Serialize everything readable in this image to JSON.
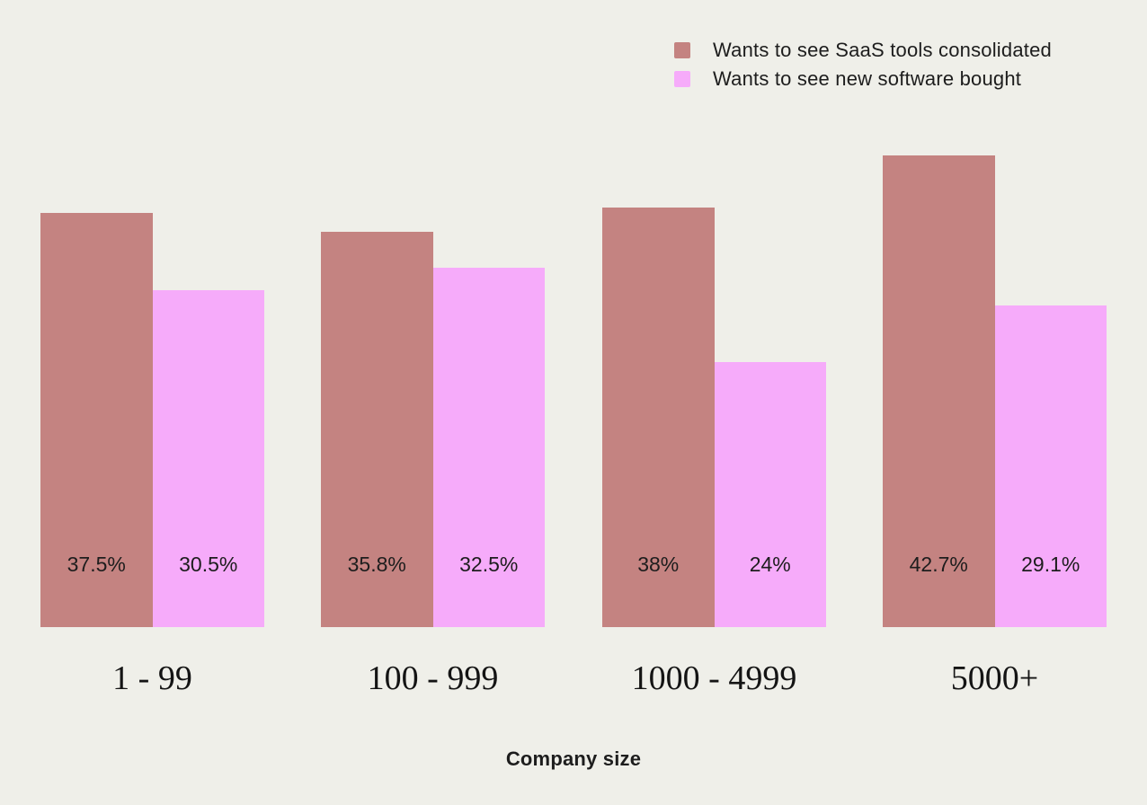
{
  "chart_data": {
    "type": "bar",
    "title": "",
    "xlabel": "Company size",
    "ylabel": "",
    "categories": [
      "1 - 99",
      "100 - 999",
      "1000 - 4999",
      "5000+"
    ],
    "series": [
      {
        "name": "Wants to see SaaS tools consolidated",
        "color": "#c48381",
        "values": [
          37.5,
          35.8,
          38,
          42.7
        ],
        "labels": [
          "37.5%",
          "35.8%",
          "38%",
          "42.7%"
        ]
      },
      {
        "name": "Wants to see new software bought",
        "color": "#f6abfa",
        "values": [
          30.5,
          32.5,
          24,
          29.1
        ],
        "labels": [
          "30.5%",
          "32.5%",
          "24%",
          "29.1%"
        ]
      }
    ],
    "legend_position": "top-right",
    "grid": false,
    "axes_visible": false,
    "value_labels_inside_bars": true,
    "background": "#efefe9",
    "text_color": "#1d1d1d",
    "ylim": [
      0,
      45
    ]
  }
}
